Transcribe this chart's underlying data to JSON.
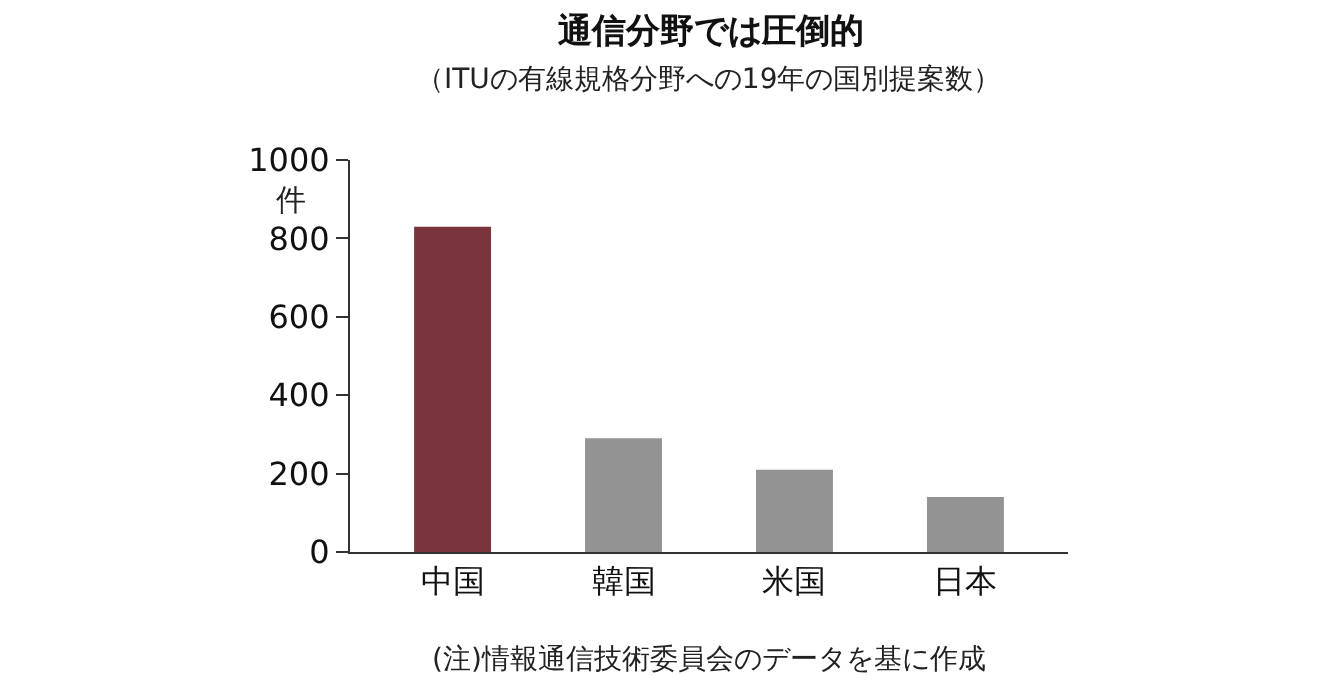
{
  "chart_data": {
    "type": "bar",
    "title": "通信分野では圧倒的",
    "subtitle": "（ITUの有線規格分野への19年の国別提案数）",
    "ylabel": "件",
    "categories": [
      "中国",
      "韓国",
      "米国",
      "日本"
    ],
    "values": [
      830,
      290,
      210,
      140
    ],
    "colors": [
      "#7b343c",
      "#939393",
      "#939393",
      "#939393"
    ],
    "ylim": [
      0,
      1000
    ],
    "yticks": [
      0,
      200,
      400,
      600,
      800,
      1000
    ],
    "grid": false,
    "legend": false,
    "annotations": [
      "(注)情報通信技術委員会のデータを基に作成"
    ]
  }
}
